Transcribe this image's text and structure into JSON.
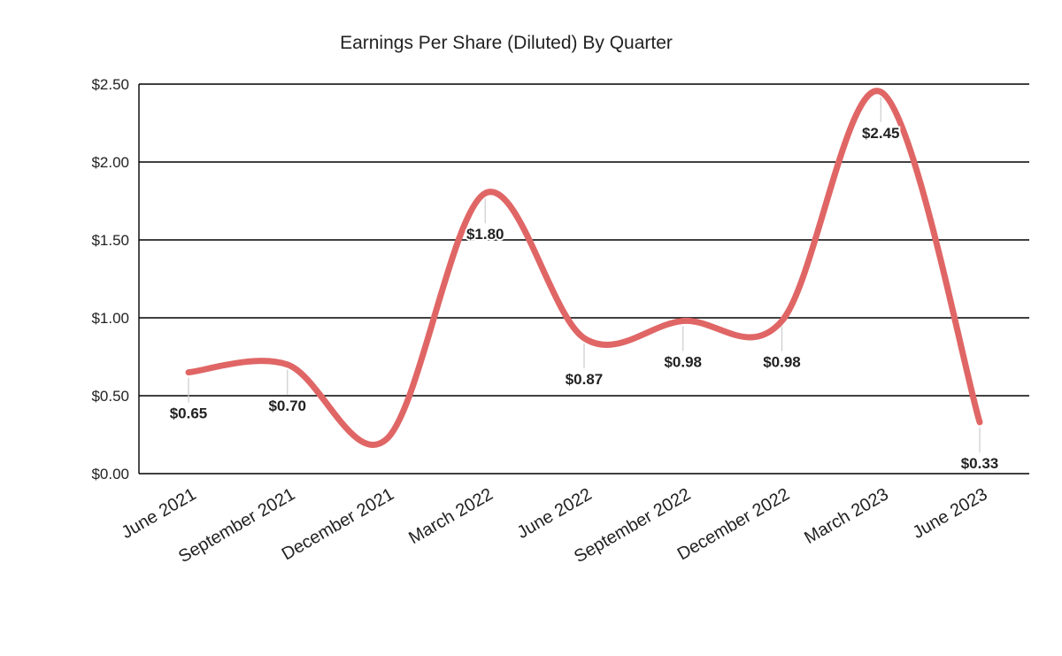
{
  "chart_data": {
    "type": "line",
    "title": "Earnings Per Share (Diluted) By Quarter",
    "xlabel": "",
    "ylabel": "",
    "categories": [
      "June 2021",
      "September 2021",
      "December 2021",
      "March 2022",
      "June 2022",
      "September 2022",
      "December 2022",
      "March 2023",
      "June 2023"
    ],
    "series": [
      {
        "values": [
          0.65,
          0.7,
          0.22,
          1.8,
          0.87,
          0.98,
          0.98,
          2.45,
          0.33
        ],
        "labels": [
          "$0.65",
          "$0.70",
          "",
          "$1.80",
          "$0.87",
          "$0.98",
          "$0.98",
          "$2.45",
          "$0.33"
        ]
      }
    ],
    "ylim": [
      0,
      2.5
    ],
    "yticks": [
      0,
      0.5,
      1.0,
      1.5,
      2.0,
      2.5
    ],
    "ytick_labels": [
      "$0.00",
      "$0.50",
      "$1.00",
      "$1.50",
      "$2.00",
      "$2.50"
    ],
    "grid": true,
    "smooth": true,
    "legend": "none",
    "colors": {
      "series": "#e06666",
      "grid": "#000000",
      "leader": "#cccccc",
      "text": "#222222"
    }
  }
}
